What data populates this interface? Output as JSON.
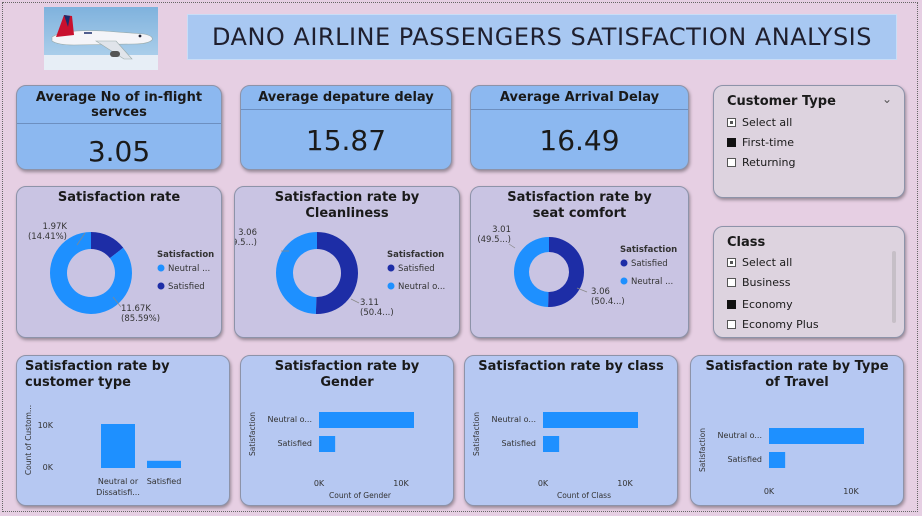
{
  "title": "DANO AIRLINE PASSENGERS SATISFACTION ANALYSIS",
  "kpis": [
    {
      "label": "Average No of in-flight servces",
      "value": "3.05"
    },
    {
      "label": "Average depature delay",
      "value": "15.87"
    },
    {
      "label": "Average Arrival Delay",
      "value": "16.49"
    }
  ],
  "donuts": [
    {
      "title": "Satisfaction rate",
      "legend_title": "Satisfaction",
      "legend": [
        "Neutral ...",
        "Satisfied"
      ],
      "share_neutral": 0.8559,
      "label_a": [
        "1.97K",
        "(14.41%)"
      ],
      "label_b": [
        "11.67K",
        "(85.59%)"
      ]
    },
    {
      "title": "Satisfaction rate by Cleanliness",
      "legend_title": "Satisfaction",
      "legend": [
        "Satisfied",
        "Neutral o..."
      ],
      "share_neutral": 0.4957,
      "label_a": [
        "3.06",
        "(49.5...)"
      ],
      "label_b": [
        "3.11",
        "(50.4...)"
      ]
    },
    {
      "title": "Satisfaction rate by seat comfort",
      "legend_title": "Satisfaction",
      "legend": [
        "Satisfied",
        "Neutral ..."
      ],
      "share_neutral": 0.4957,
      "label_a": [
        "3.01",
        "(49.5...)"
      ],
      "label_b": [
        "3.06",
        "(50.4...)"
      ]
    }
  ],
  "slicers": [
    {
      "title": "Customer Type",
      "items": [
        {
          "label": "Select all",
          "state": "partial"
        },
        {
          "label": "First-time",
          "state": "filled"
        },
        {
          "label": "Returning",
          "state": "empty"
        }
      ]
    },
    {
      "title": "Class",
      "items": [
        {
          "label": "Select all",
          "state": "partial"
        },
        {
          "label": "Business",
          "state": "empty"
        },
        {
          "label": "Economy",
          "state": "filled"
        },
        {
          "label": "Economy Plus",
          "state": "empty"
        }
      ]
    }
  ],
  "bars": [
    {
      "title": "Satisfaction rate by customer type",
      "orientation": "vertical",
      "ylabel": "Count of Custom...",
      "ticks": [
        "10K",
        "0K"
      ],
      "categories": [
        "Neutral or Dissatisfi...",
        "Satisfied"
      ],
      "values": [
        11000,
        1800
      ],
      "axis_max": 15000
    },
    {
      "title": "Satisfaction rate by Gender",
      "orientation": "horizontal",
      "ylabel": "Satisfaction",
      "xlabel": "Count of Gender",
      "ticks": [
        "0K",
        "10K"
      ],
      "categories": [
        "Neutral o...",
        "Satisfied"
      ],
      "values": [
        11670,
        1970
      ],
      "axis_max": 10000
    },
    {
      "title": "Satisfaction rate by class",
      "orientation": "horizontal",
      "ylabel": "Satisfaction",
      "xlabel": "Count of Class",
      "ticks": [
        "0K",
        "10K"
      ],
      "categories": [
        "Neutral o...",
        "Satisfied"
      ],
      "values": [
        11670,
        1970
      ],
      "axis_max": 10000
    },
    {
      "title": "Satisfaction rate by Type of Travel",
      "orientation": "horizontal",
      "ylabel": "Satisfaction",
      "xlabel": "",
      "ticks": [
        "0K",
        "10K"
      ],
      "categories": [
        "Neutral o...",
        "Satisfied"
      ],
      "values": [
        11670,
        1970
      ],
      "axis_max": 10000
    }
  ],
  "colors": {
    "neutral": "#1e90ff",
    "satisfied": "#1d2da6",
    "bar": "#1e90ff"
  },
  "chart_data": [
    {
      "type": "pie",
      "title": "Satisfaction rate",
      "categories": [
        "Neutral ...",
        "Satisfied"
      ],
      "values": [
        11670,
        1970
      ]
    },
    {
      "type": "pie",
      "title": "Satisfaction rate by Cleanliness",
      "categories": [
        "Satisfied",
        "Neutral o..."
      ],
      "values": [
        3.11,
        3.06
      ]
    },
    {
      "type": "pie",
      "title": "Satisfaction rate by seat comfort",
      "categories": [
        "Satisfied",
        "Neutral ..."
      ],
      "values": [
        3.06,
        3.01
      ]
    },
    {
      "type": "bar",
      "title": "Satisfaction rate by customer type",
      "categories": [
        "Neutral or Dissatisfi...",
        "Satisfied"
      ],
      "values": [
        11000,
        1800
      ],
      "ylabel": "Count of Custom..."
    },
    {
      "type": "bar",
      "title": "Satisfaction rate by Gender",
      "categories": [
        "Neutral o...",
        "Satisfied"
      ],
      "values": [
        11670,
        1970
      ],
      "xlabel": "Count of Gender",
      "ylabel": "Satisfaction"
    },
    {
      "type": "bar",
      "title": "Satisfaction rate by class",
      "categories": [
        "Neutral o...",
        "Satisfied"
      ],
      "values": [
        11670,
        1970
      ],
      "xlabel": "Count of Class",
      "ylabel": "Satisfaction"
    },
    {
      "type": "bar",
      "title": "Satisfaction rate by Type of Travel",
      "categories": [
        "Neutral o...",
        "Satisfied"
      ],
      "values": [
        11670,
        1970
      ],
      "ylabel": "Satisfaction"
    }
  ]
}
